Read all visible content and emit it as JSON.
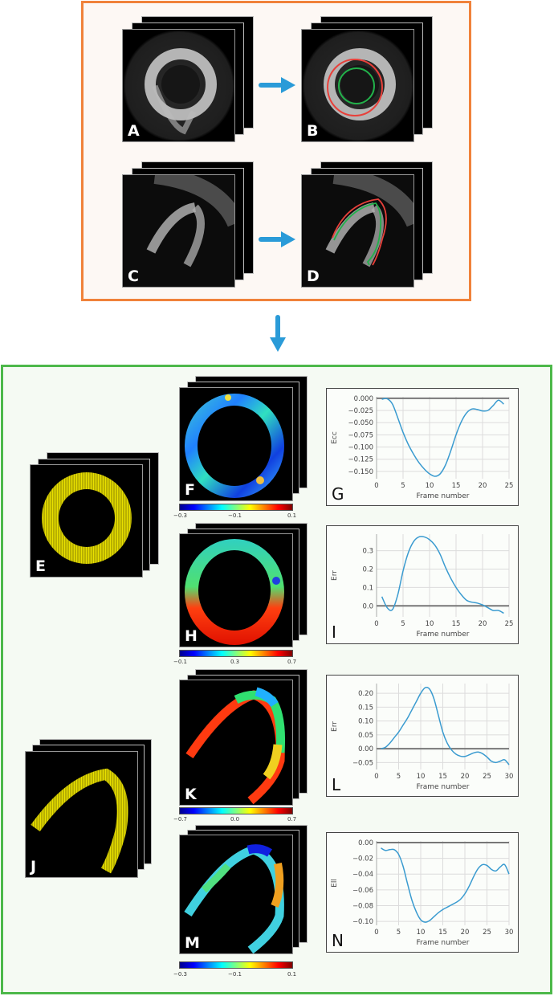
{
  "figure": {
    "top_section": {
      "border_color": "#f0823a",
      "panels": [
        {
          "letter": "A",
          "description": "Short-axis cine MRI frame stack"
        },
        {
          "letter": "B",
          "description": "Short-axis with epicardial (red) and endocardial (green) contours"
        },
        {
          "letter": "C",
          "description": "Long-axis cine MRI frame stack"
        },
        {
          "letter": "D",
          "description": "Long-axis with epicardial (red) and endocardial (green) contours"
        }
      ],
      "contour_colors": {
        "epicardium": "#e8403a",
        "endocardium": "#22b04a"
      },
      "arrow_color": "#2a9bd8"
    },
    "bottom_section": {
      "border_color": "#4db84a",
      "displacement_panels": [
        {
          "letter": "E",
          "color": "#d8d000"
        },
        {
          "letter": "J",
          "color": "#d8d000"
        }
      ],
      "strain_maps": [
        {
          "letter": "F",
          "colorbar": {
            "min": "−0.3",
            "mid": "−0.1",
            "max": "0.1"
          }
        },
        {
          "letter": "H",
          "colorbar": {
            "min": "−0.1",
            "mid": "0.3",
            "max": "0.7"
          }
        },
        {
          "letter": "K",
          "colorbar": {
            "min": "−0.7",
            "mid": "0.0",
            "max": "0.7"
          }
        },
        {
          "letter": "M",
          "colorbar": {
            "min": "−0.3",
            "mid": "−0.1",
            "max": "0.1"
          }
        }
      ]
    }
  },
  "chart_data": [
    {
      "panel": "G",
      "type": "line",
      "xlabel": "Frame number",
      "ylabel": "Ecc",
      "xlim": [
        0,
        25
      ],
      "ylim": [
        -0.165,
        0.003
      ],
      "xticks": [
        "0",
        "5",
        "10",
        "15",
        "20",
        "25"
      ],
      "yticks": [
        "0.000",
        "−0.025",
        "−0.050",
        "−0.075",
        "−0.100",
        "−0.125",
        "−0.150"
      ],
      "grid": true,
      "series": [
        {
          "name": "Ecc",
          "color": "#3a9bd0",
          "x": [
            1,
            2,
            3,
            4,
            5,
            6,
            7,
            8,
            9,
            10,
            11,
            12,
            13,
            14,
            15,
            16,
            17,
            18,
            19,
            20,
            21,
            22,
            23,
            24
          ],
          "y": [
            -0.002,
            -0.001,
            -0.012,
            -0.04,
            -0.07,
            -0.095,
            -0.115,
            -0.132,
            -0.145,
            -0.155,
            -0.16,
            -0.155,
            -0.137,
            -0.108,
            -0.075,
            -0.048,
            -0.03,
            -0.022,
            -0.023,
            -0.026,
            -0.025,
            -0.015,
            -0.004,
            -0.012
          ]
        }
      ]
    },
    {
      "panel": "I",
      "type": "line",
      "xlabel": "Frame number",
      "ylabel": "Err",
      "xlim": [
        0,
        25
      ],
      "ylim": [
        -0.06,
        0.39
      ],
      "xticks": [
        "0",
        "5",
        "10",
        "15",
        "20",
        "25"
      ],
      "yticks": [
        "0.0",
        "0.1",
        "0.2",
        "0.3"
      ],
      "grid": true,
      "series": [
        {
          "name": "Err",
          "color": "#3a9bd0",
          "x": [
            1,
            2,
            3,
            4,
            5,
            6,
            7,
            8,
            9,
            10,
            11,
            12,
            13,
            14,
            15,
            16,
            17,
            18,
            19,
            20,
            21,
            22,
            23,
            24
          ],
          "y": [
            0.05,
            -0.01,
            -0.02,
            0.06,
            0.19,
            0.29,
            0.35,
            0.375,
            0.375,
            0.36,
            0.33,
            0.28,
            0.21,
            0.15,
            0.1,
            0.06,
            0.03,
            0.02,
            0.015,
            0.005,
            -0.01,
            -0.025,
            -0.025,
            -0.04
          ]
        }
      ]
    },
    {
      "panel": "L",
      "type": "line",
      "xlabel": "Frame number",
      "ylabel": "Err",
      "xlim": [
        0,
        30
      ],
      "ylim": [
        -0.075,
        0.235
      ],
      "xticks": [
        "0",
        "5",
        "10",
        "15",
        "20",
        "25",
        "30"
      ],
      "yticks": [
        "−0.05",
        "0.00",
        "0.05",
        "0.10",
        "0.15",
        "0.20"
      ],
      "grid": true,
      "series": [
        {
          "name": "Err",
          "color": "#3a9bd0",
          "x": [
            1,
            2,
            3,
            4,
            5,
            6,
            7,
            8,
            9,
            10,
            11,
            12,
            13,
            14,
            15,
            16,
            17,
            18,
            19,
            20,
            21,
            22,
            23,
            24,
            25,
            26,
            27,
            28,
            29,
            30
          ],
          "y": [
            0.0,
            0.005,
            0.02,
            0.04,
            0.06,
            0.085,
            0.11,
            0.14,
            0.17,
            0.2,
            0.22,
            0.215,
            0.18,
            0.12,
            0.06,
            0.02,
            -0.005,
            -0.02,
            -0.027,
            -0.028,
            -0.022,
            -0.015,
            -0.012,
            -0.018,
            -0.03,
            -0.045,
            -0.05,
            -0.045,
            -0.04,
            -0.058
          ]
        }
      ]
    },
    {
      "panel": "N",
      "type": "line",
      "xlabel": "Frame number",
      "ylabel": "Ell",
      "xlim": [
        0,
        30
      ],
      "ylim": [
        -0.105,
        0.002
      ],
      "xticks": [
        "0",
        "5",
        "10",
        "15",
        "20",
        "25",
        "30"
      ],
      "yticks": [
        "0.00",
        "−0.02",
        "−0.04",
        "−0.06",
        "−0.08",
        "−0.10"
      ],
      "grid": true,
      "series": [
        {
          "name": "Ell",
          "color": "#3a9bd0",
          "x": [
            1,
            2,
            3,
            4,
            5,
            6,
            7,
            8,
            9,
            10,
            11,
            12,
            13,
            14,
            15,
            16,
            17,
            18,
            19,
            20,
            21,
            22,
            23,
            24,
            25,
            26,
            27,
            28,
            29,
            30
          ],
          "y": [
            -0.007,
            -0.01,
            -0.009,
            -0.009,
            -0.015,
            -0.03,
            -0.052,
            -0.073,
            -0.088,
            -0.098,
            -0.101,
            -0.099,
            -0.094,
            -0.089,
            -0.085,
            -0.082,
            -0.079,
            -0.076,
            -0.072,
            -0.065,
            -0.055,
            -0.043,
            -0.033,
            -0.028,
            -0.029,
            -0.034,
            -0.036,
            -0.031,
            -0.028,
            -0.04
          ]
        }
      ]
    }
  ]
}
